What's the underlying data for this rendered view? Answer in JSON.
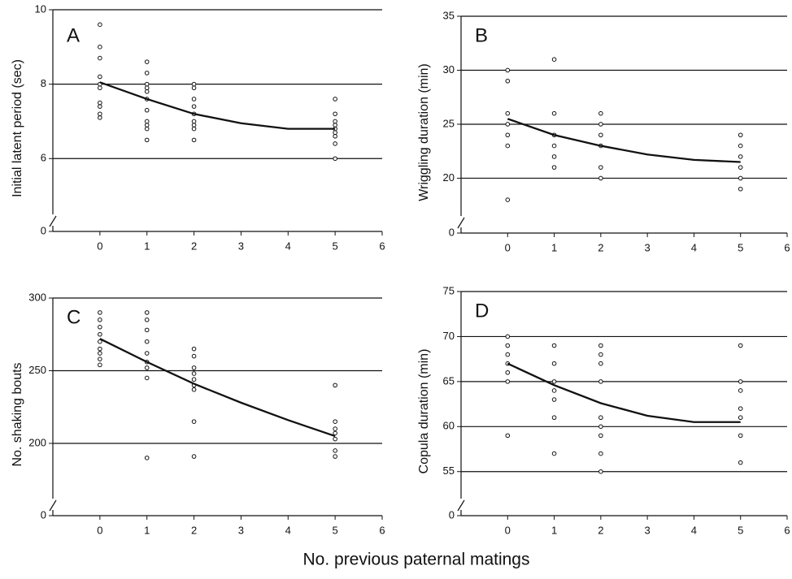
{
  "xlabel": "No. previous paternal matings",
  "chart_data": [
    {
      "type": "scatter",
      "label": "A",
      "ylabel": "Initial latent period (sec)",
      "xlim": [
        -1,
        6
      ],
      "xticks": [
        0,
        1,
        2,
        3,
        4,
        5,
        6
      ],
      "ylim": [
        4.5,
        10
      ],
      "yticks": [
        0,
        6,
        8,
        10
      ],
      "y_break": true,
      "grid": true,
      "series": [
        {
          "style": "markers",
          "color": "#111",
          "x": [
            0,
            0,
            0,
            0,
            0,
            0,
            0,
            0,
            0,
            0,
            1,
            1,
            1,
            1,
            1,
            1,
            1,
            1,
            1,
            1,
            1,
            2,
            2,
            2,
            2,
            2,
            2,
            2,
            2,
            2,
            5,
            5,
            5,
            5,
            5,
            5,
            5,
            5,
            5
          ],
          "values": [
            9.6,
            9.0,
            8.7,
            8.2,
            8.0,
            7.9,
            7.5,
            7.4,
            7.2,
            7.1,
            8.6,
            8.3,
            8.0,
            7.9,
            7.8,
            7.6,
            7.3,
            7.0,
            6.9,
            6.8,
            6.5,
            8.0,
            7.9,
            7.6,
            7.4,
            7.2,
            7.0,
            6.9,
            6.8,
            6.5,
            7.6,
            7.2,
            7.0,
            6.9,
            6.8,
            6.7,
            6.6,
            6.4,
            6.0
          ]
        },
        {
          "style": "line",
          "color": "#111",
          "x": [
            0,
            1,
            2,
            3,
            4,
            5
          ],
          "values": [
            8.05,
            7.6,
            7.2,
            6.95,
            6.8,
            6.8
          ]
        }
      ]
    },
    {
      "type": "scatter",
      "label": "B",
      "ylabel": "Wriggling duration (min)",
      "xlim": [
        -1,
        6
      ],
      "xticks": [
        0,
        1,
        2,
        3,
        4,
        5,
        6
      ],
      "ylim": [
        16.5,
        35
      ],
      "yticks": [
        0,
        20,
        25,
        30,
        35
      ],
      "y_break": true,
      "grid": true,
      "series": [
        {
          "style": "markers",
          "color": "#111",
          "x": [
            0,
            0,
            0,
            0,
            0,
            0,
            0,
            1,
            1,
            1,
            1,
            1,
            1,
            2,
            2,
            2,
            2,
            2,
            2,
            5,
            5,
            5,
            5,
            5,
            5
          ],
          "values": [
            30,
            29,
            26,
            25,
            24,
            23,
            18,
            31,
            26,
            24,
            23,
            22,
            21,
            26,
            25,
            24,
            23,
            21,
            20,
            24,
            23,
            22,
            21,
            20,
            19
          ]
        },
        {
          "style": "line",
          "color": "#111",
          "x": [
            0,
            1,
            2,
            3,
            4,
            5
          ],
          "values": [
            25.5,
            24,
            23,
            22.2,
            21.7,
            21.5
          ]
        }
      ]
    },
    {
      "type": "scatter",
      "label": "C",
      "ylabel": "No. shaking bouts",
      "xlim": [
        -1,
        6
      ],
      "xticks": [
        0,
        1,
        2,
        3,
        4,
        5,
        6
      ],
      "ylim": [
        162,
        300
      ],
      "yticks": [
        0,
        200,
        250,
        300
      ],
      "y_break": true,
      "grid": true,
      "series": [
        {
          "style": "markers",
          "color": "#111",
          "x": [
            0,
            0,
            0,
            0,
            0,
            0,
            0,
            0,
            0,
            1,
            1,
            1,
            1,
            1,
            1,
            1,
            1,
            1,
            2,
            2,
            2,
            2,
            2,
            2,
            2,
            2,
            2,
            5,
            5,
            5,
            5,
            5,
            5,
            5
          ],
          "values": [
            290,
            285,
            280,
            275,
            270,
            265,
            262,
            258,
            254,
            290,
            285,
            278,
            270,
            262,
            256,
            252,
            245,
            190,
            265,
            260,
            252,
            248,
            244,
            240,
            237,
            215,
            191,
            240,
            215,
            210,
            207,
            203,
            195,
            191
          ]
        },
        {
          "style": "line",
          "color": "#111",
          "x": [
            0,
            1,
            2,
            3,
            4,
            5
          ],
          "values": [
            272,
            256,
            241,
            228,
            216,
            205
          ]
        }
      ]
    },
    {
      "type": "scatter",
      "label": "D",
      "ylabel": "Copula duration (min)",
      "xlim": [
        -1,
        6
      ],
      "xticks": [
        0,
        1,
        2,
        3,
        4,
        5,
        6
      ],
      "ylim": [
        52,
        75
      ],
      "yticks": [
        0,
        55,
        60,
        65,
        70,
        75
      ],
      "y_break": true,
      "grid": true,
      "series": [
        {
          "style": "markers",
          "color": "#111",
          "x": [
            0,
            0,
            0,
            0,
            0,
            0,
            0,
            1,
            1,
            1,
            1,
            1,
            1,
            1,
            2,
            2,
            2,
            2,
            2,
            2,
            2,
            2,
            2,
            5,
            5,
            5,
            5,
            5,
            5,
            5
          ],
          "values": [
            70,
            69,
            68,
            67,
            66,
            65,
            59,
            69,
            67,
            65,
            64,
            63,
            61,
            57,
            69,
            68,
            67,
            65,
            61,
            60,
            59,
            57,
            55,
            69,
            65,
            64,
            62,
            61,
            59,
            56
          ]
        },
        {
          "style": "line",
          "color": "#111",
          "x": [
            0,
            1,
            2,
            3,
            4,
            5
          ],
          "values": [
            67,
            64.6,
            62.6,
            61.2,
            60.5,
            60.5
          ]
        }
      ]
    }
  ]
}
